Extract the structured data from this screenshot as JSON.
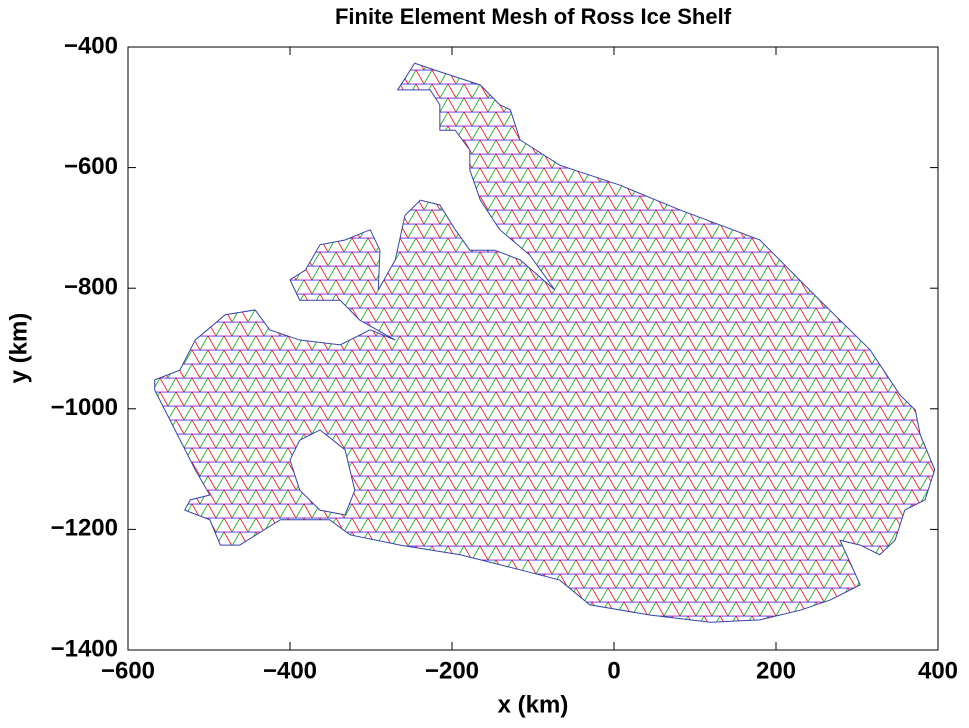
{
  "chart_data": {
    "type": "mesh",
    "title": "Finite Element Mesh of Ross Ice Shelf",
    "xlabel": "x (km)",
    "ylabel": "y (km)",
    "xlim": [
      -600,
      400
    ],
    "ylim": [
      -1400,
      -400
    ],
    "xticks": [
      {
        "value": -600,
        "label": "−600"
      },
      {
        "value": -400,
        "label": "−400"
      },
      {
        "value": -200,
        "label": "−200"
      },
      0,
      200,
      400
    ],
    "yticks": [
      {
        "value": -1400,
        "label": "−1400"
      },
      {
        "value": -1200,
        "label": "−1200"
      },
      {
        "value": -1000,
        "label": "−1000"
      },
      {
        "value": -800,
        "label": "−800"
      },
      {
        "value": -600,
        "label": "−600"
      },
      {
        "value": -400,
        "label": "−400"
      }
    ],
    "boundary": {
      "x": [
        -267,
        -246,
        -215,
        -165,
        -141,
        -128,
        -116,
        -67,
        7,
        81,
        180,
        254,
        316,
        353,
        372,
        378,
        396,
        384,
        359,
        347,
        328,
        304,
        279,
        304,
        267,
        230,
        180,
        119,
        44,
        -30,
        -67,
        -116,
        -190,
        -264,
        -326,
        -351,
        -412,
        -462,
        -486,
        -499,
        -530,
        -523,
        -499,
        -517,
        -542,
        -567,
        -567,
        -536,
        -517,
        -480,
        -443,
        -425,
        -388,
        -338,
        -301,
        -270,
        -314,
        -338,
        -388,
        -400,
        -381,
        -363,
        -332,
        -301,
        -289,
        -291,
        -270,
        -258,
        -239,
        -215,
        -196,
        -178,
        -147,
        -116,
        -73,
        -104,
        -141,
        -165,
        -178,
        -178,
        -196,
        -215,
        -215,
        -227
      ],
      "y": [
        -471,
        -427,
        -441,
        -463,
        -496,
        -504,
        -554,
        -596,
        -629,
        -670,
        -720,
        -820,
        -902,
        -977,
        -1002,
        -1043,
        -1101,
        -1151,
        -1168,
        -1218,
        -1242,
        -1226,
        -1218,
        -1292,
        -1317,
        -1334,
        -1350,
        -1354,
        -1342,
        -1325,
        -1284,
        -1267,
        -1242,
        -1226,
        -1209,
        -1184,
        -1184,
        -1226,
        -1226,
        -1184,
        -1168,
        -1151,
        -1143,
        -1101,
        -1035,
        -969,
        -952,
        -936,
        -886,
        -844,
        -836,
        -869,
        -886,
        -894,
        -869,
        -886,
        -853,
        -820,
        -820,
        -786,
        -770,
        -728,
        -720,
        -703,
        -737,
        -803,
        -753,
        -679,
        -654,
        -662,
        -703,
        -737,
        -737,
        -753,
        -803,
        -745,
        -703,
        -654,
        -604,
        -571,
        -538,
        -538,
        -496,
        -471
      ]
    },
    "holes": [
      {
        "x": [
          -388,
          -363,
          -332,
          -320,
          -332,
          -363,
          -388,
          -400
        ],
        "y": [
          -1052,
          -1035,
          -1068,
          -1135,
          -1176,
          -1168,
          -1135,
          -1085
        ]
      }
    ]
  }
}
